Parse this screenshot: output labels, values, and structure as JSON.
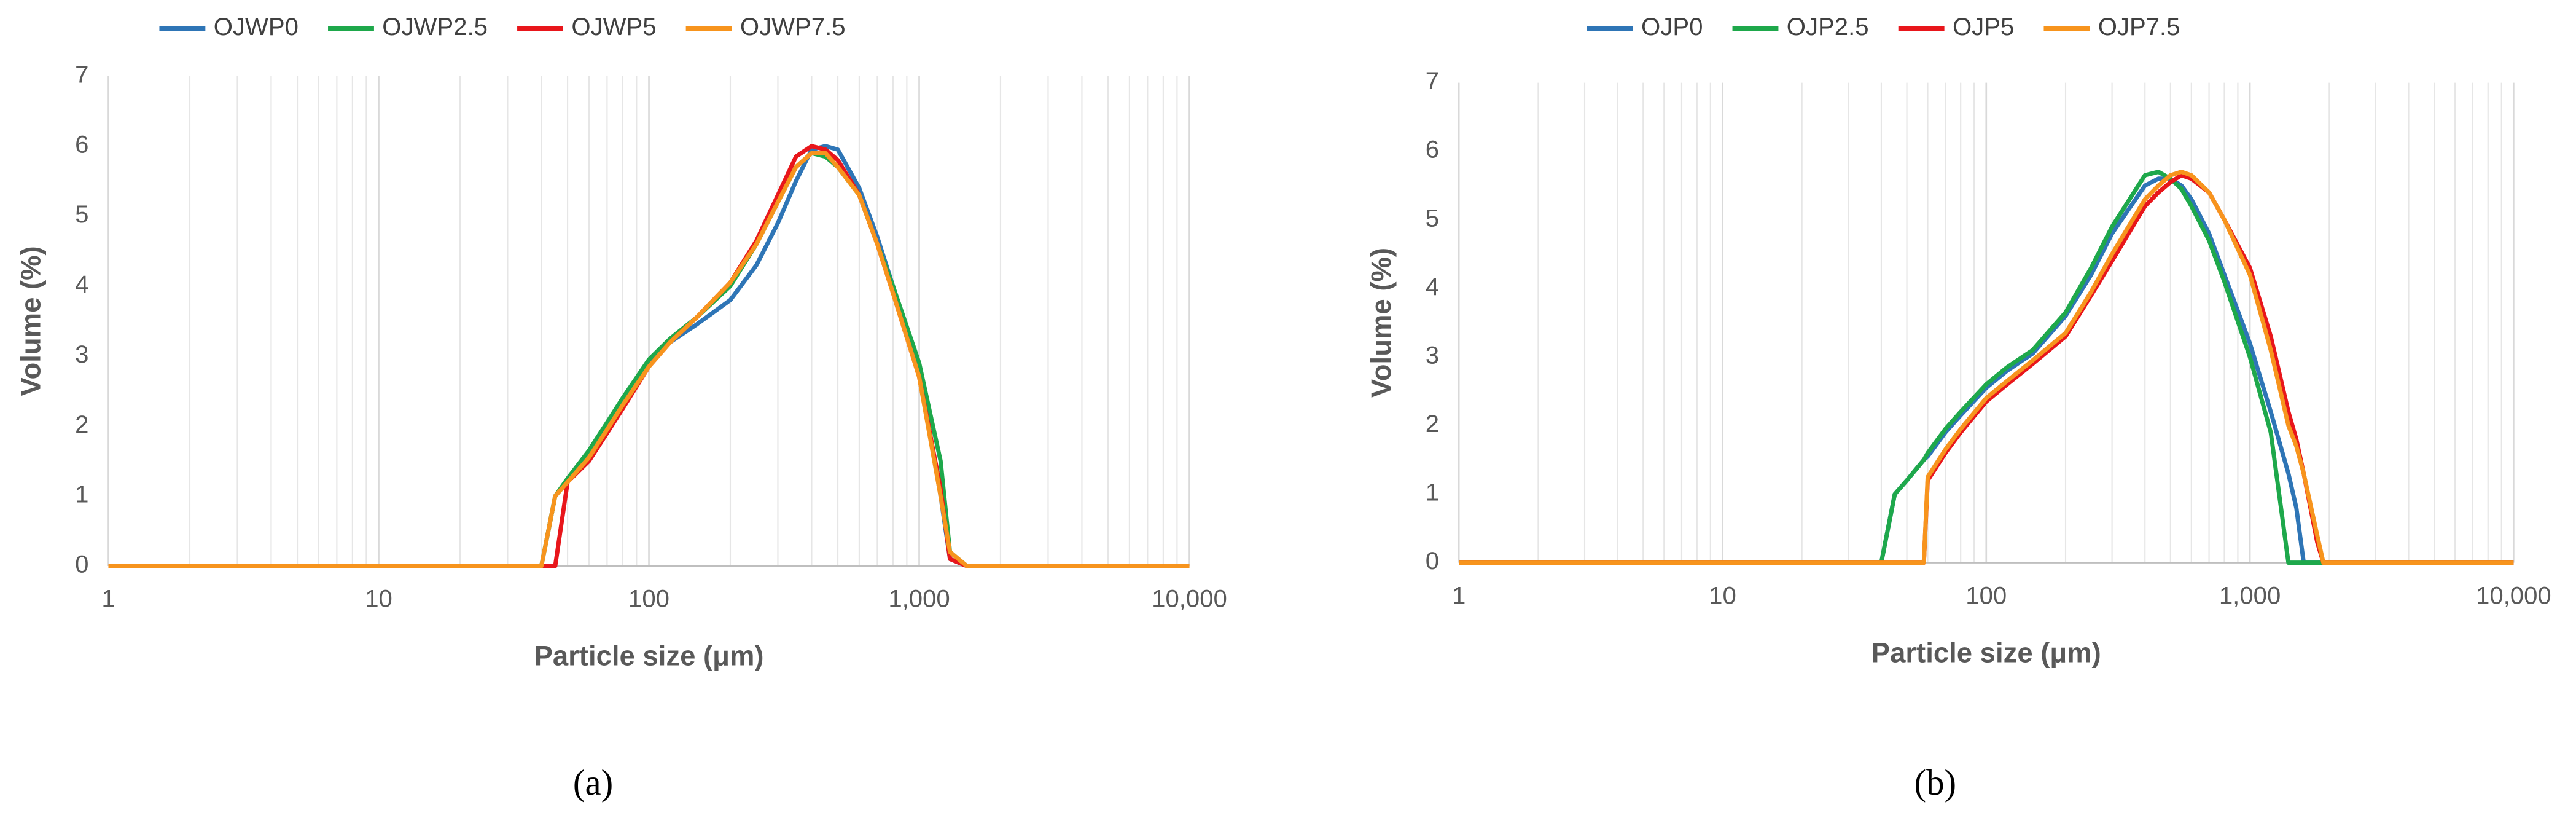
{
  "chart_data": [
    {
      "type": "line",
      "panel_label": "(a)",
      "xlabel": "Particle size (μm)",
      "ylabel": "Volume (%)",
      "xscale": "log",
      "xlim": [
        1,
        10000
      ],
      "ylim": [
        0,
        7
      ],
      "xticks": [
        1,
        10,
        100,
        {
          "value": 1000,
          "label": "1,000"
        },
        {
          "value": 10000,
          "label": "10,000"
        }
      ],
      "yticks": [
        0,
        1,
        2,
        3,
        4,
        5,
        6,
        7
      ],
      "grid": true,
      "minor_grid": true,
      "legend": "top",
      "x": [
        1,
        40,
        45,
        50,
        60,
        70,
        80,
        100,
        120,
        150,
        200,
        250,
        300,
        350,
        400,
        450,
        500,
        600,
        700,
        800,
        1000,
        1200,
        1300,
        1500,
        10000
      ],
      "series": [
        {
          "name": "OJWP0",
          "color": "#2e75b6",
          "values": [
            0,
            0,
            1.0,
            1.2,
            1.6,
            2.0,
            2.4,
            2.9,
            3.2,
            3.45,
            3.8,
            4.3,
            4.9,
            5.5,
            5.95,
            6.0,
            5.95,
            5.4,
            4.7,
            4.0,
            2.8,
            1.0,
            0.1,
            0,
            0
          ]
        },
        {
          "name": "OJWP2.5",
          "color": "#1ea84b",
          "values": [
            0,
            0,
            1.0,
            1.25,
            1.65,
            2.05,
            2.4,
            2.95,
            3.25,
            3.55,
            4.0,
            4.6,
            5.2,
            5.7,
            5.9,
            5.85,
            5.7,
            5.3,
            4.6,
            4.0,
            2.9,
            1.5,
            0.2,
            0,
            0
          ]
        },
        {
          "name": "OJWP5",
          "color": "#e8161b",
          "values": [
            0,
            0,
            0,
            1.2,
            1.5,
            1.9,
            2.25,
            2.85,
            3.2,
            3.55,
            4.05,
            4.65,
            5.3,
            5.85,
            6.0,
            5.95,
            5.8,
            5.3,
            4.6,
            3.9,
            2.7,
            1.1,
            0.1,
            0,
            0
          ]
        },
        {
          "name": "OJWP7.5",
          "color": "#f7941d",
          "values": [
            0,
            0,
            1.0,
            1.2,
            1.55,
            1.95,
            2.3,
            2.85,
            3.2,
            3.55,
            4.05,
            4.6,
            5.2,
            5.7,
            5.9,
            5.9,
            5.7,
            5.3,
            4.6,
            3.9,
            2.7,
            1.0,
            0.2,
            0,
            0
          ]
        }
      ]
    },
    {
      "type": "line",
      "panel_label": "(b)",
      "xlabel": "Particle size (μm)",
      "ylabel": "Volume (%)",
      "xscale": "log",
      "xlim": [
        1,
        10000
      ],
      "ylim": [
        0,
        7
      ],
      "xticks": [
        1,
        10,
        100,
        {
          "value": 1000,
          "label": "1,000"
        },
        {
          "value": 10000,
          "label": "10,000"
        }
      ],
      "yticks": [
        0,
        1,
        2,
        3,
        4,
        5,
        6,
        7
      ],
      "grid": true,
      "minor_grid": true,
      "legend": "top",
      "x": [
        1,
        40,
        45,
        50,
        58,
        60,
        70,
        80,
        100,
        120,
        150,
        200,
        250,
        300,
        400,
        450,
        500,
        550,
        600,
        700,
        800,
        1000,
        1200,
        1400,
        1500,
        1600,
        1800,
        1900,
        10000
      ],
      "series": [
        {
          "name": "OJP0",
          "color": "#2e75b6",
          "values": [
            0,
            0,
            1.0,
            1.2,
            1.5,
            1.55,
            1.9,
            2.15,
            2.55,
            2.8,
            3.05,
            3.6,
            4.2,
            4.8,
            5.5,
            5.6,
            5.6,
            5.5,
            5.3,
            4.8,
            4.2,
            3.2,
            2.2,
            1.3,
            0.8,
            0,
            0,
            0,
            0
          ]
        },
        {
          "name": "OJP2.5",
          "color": "#1ea84b",
          "values": [
            0,
            0,
            1.0,
            1.2,
            1.5,
            1.6,
            1.95,
            2.2,
            2.6,
            2.85,
            3.1,
            3.65,
            4.3,
            4.9,
            5.65,
            5.7,
            5.6,
            5.45,
            5.2,
            4.7,
            4.1,
            3.0,
            1.9,
            0,
            0,
            0,
            0,
            0,
            0
          ]
        },
        {
          "name": "OJP5",
          "color": "#e8161b",
          "values": [
            0,
            0,
            0,
            0,
            0,
            1.2,
            1.6,
            1.9,
            2.35,
            2.6,
            2.9,
            3.3,
            3.9,
            4.4,
            5.2,
            5.4,
            5.55,
            5.65,
            5.6,
            5.4,
            5.0,
            4.3,
            3.3,
            2.2,
            1.8,
            1.3,
            0.3,
            0,
            0
          ]
        },
        {
          "name": "OJP7.5",
          "color": "#f7941d",
          "values": [
            0,
            0,
            0,
            0,
            0,
            1.25,
            1.65,
            1.95,
            2.4,
            2.65,
            2.95,
            3.35,
            3.95,
            4.5,
            5.3,
            5.5,
            5.65,
            5.7,
            5.65,
            5.4,
            5.0,
            4.2,
            3.1,
            2.0,
            1.7,
            1.3,
            0.4,
            0,
            0
          ]
        }
      ]
    }
  ]
}
